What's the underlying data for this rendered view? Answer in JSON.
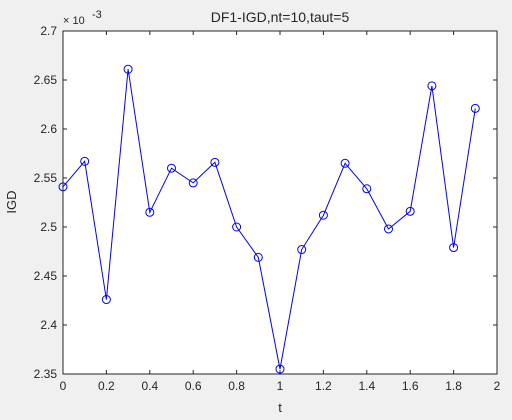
{
  "chart_data": {
    "type": "line",
    "title": "DF1-IGD,nt=10,taut=5",
    "xlabel": "t",
    "ylabel": "IGD",
    "y_exponent_base": "× 10",
    "y_exponent": "-3",
    "xlim": [
      0,
      2
    ],
    "ylim": [
      2.35,
      2.7
    ],
    "xticks": [
      0,
      0.2,
      0.4,
      0.6,
      0.8,
      1,
      1.2,
      1.4,
      1.6,
      1.8,
      2
    ],
    "xtick_labels": [
      "0",
      "0.2",
      "0.4",
      "0.6",
      "0.8",
      "1",
      "1.2",
      "1.4",
      "1.6",
      "1.8",
      "2"
    ],
    "yticks": [
      2.35,
      2.4,
      2.45,
      2.5,
      2.55,
      2.6,
      2.65,
      2.7
    ],
    "ytick_labels": [
      "2.35",
      "2.4",
      "2.45",
      "2.5",
      "2.55",
      "2.6",
      "2.65",
      "2.7"
    ],
    "grid": false,
    "series": [
      {
        "color": "#0000ff",
        "marker": "circle",
        "x": [
          0,
          0.1,
          0.2,
          0.3,
          0.4,
          0.5,
          0.6,
          0.7,
          0.8,
          0.9,
          1.0,
          1.1,
          1.2,
          1.3,
          1.4,
          1.5,
          1.6,
          1.7,
          1.8,
          1.9
        ],
        "y": [
          2.541,
          2.567,
          2.426,
          2.661,
          2.515,
          2.56,
          2.545,
          2.566,
          2.5,
          2.469,
          2.355,
          2.477,
          2.512,
          2.565,
          2.539,
          2.498,
          2.516,
          2.644,
          2.479,
          2.621
        ]
      }
    ]
  }
}
